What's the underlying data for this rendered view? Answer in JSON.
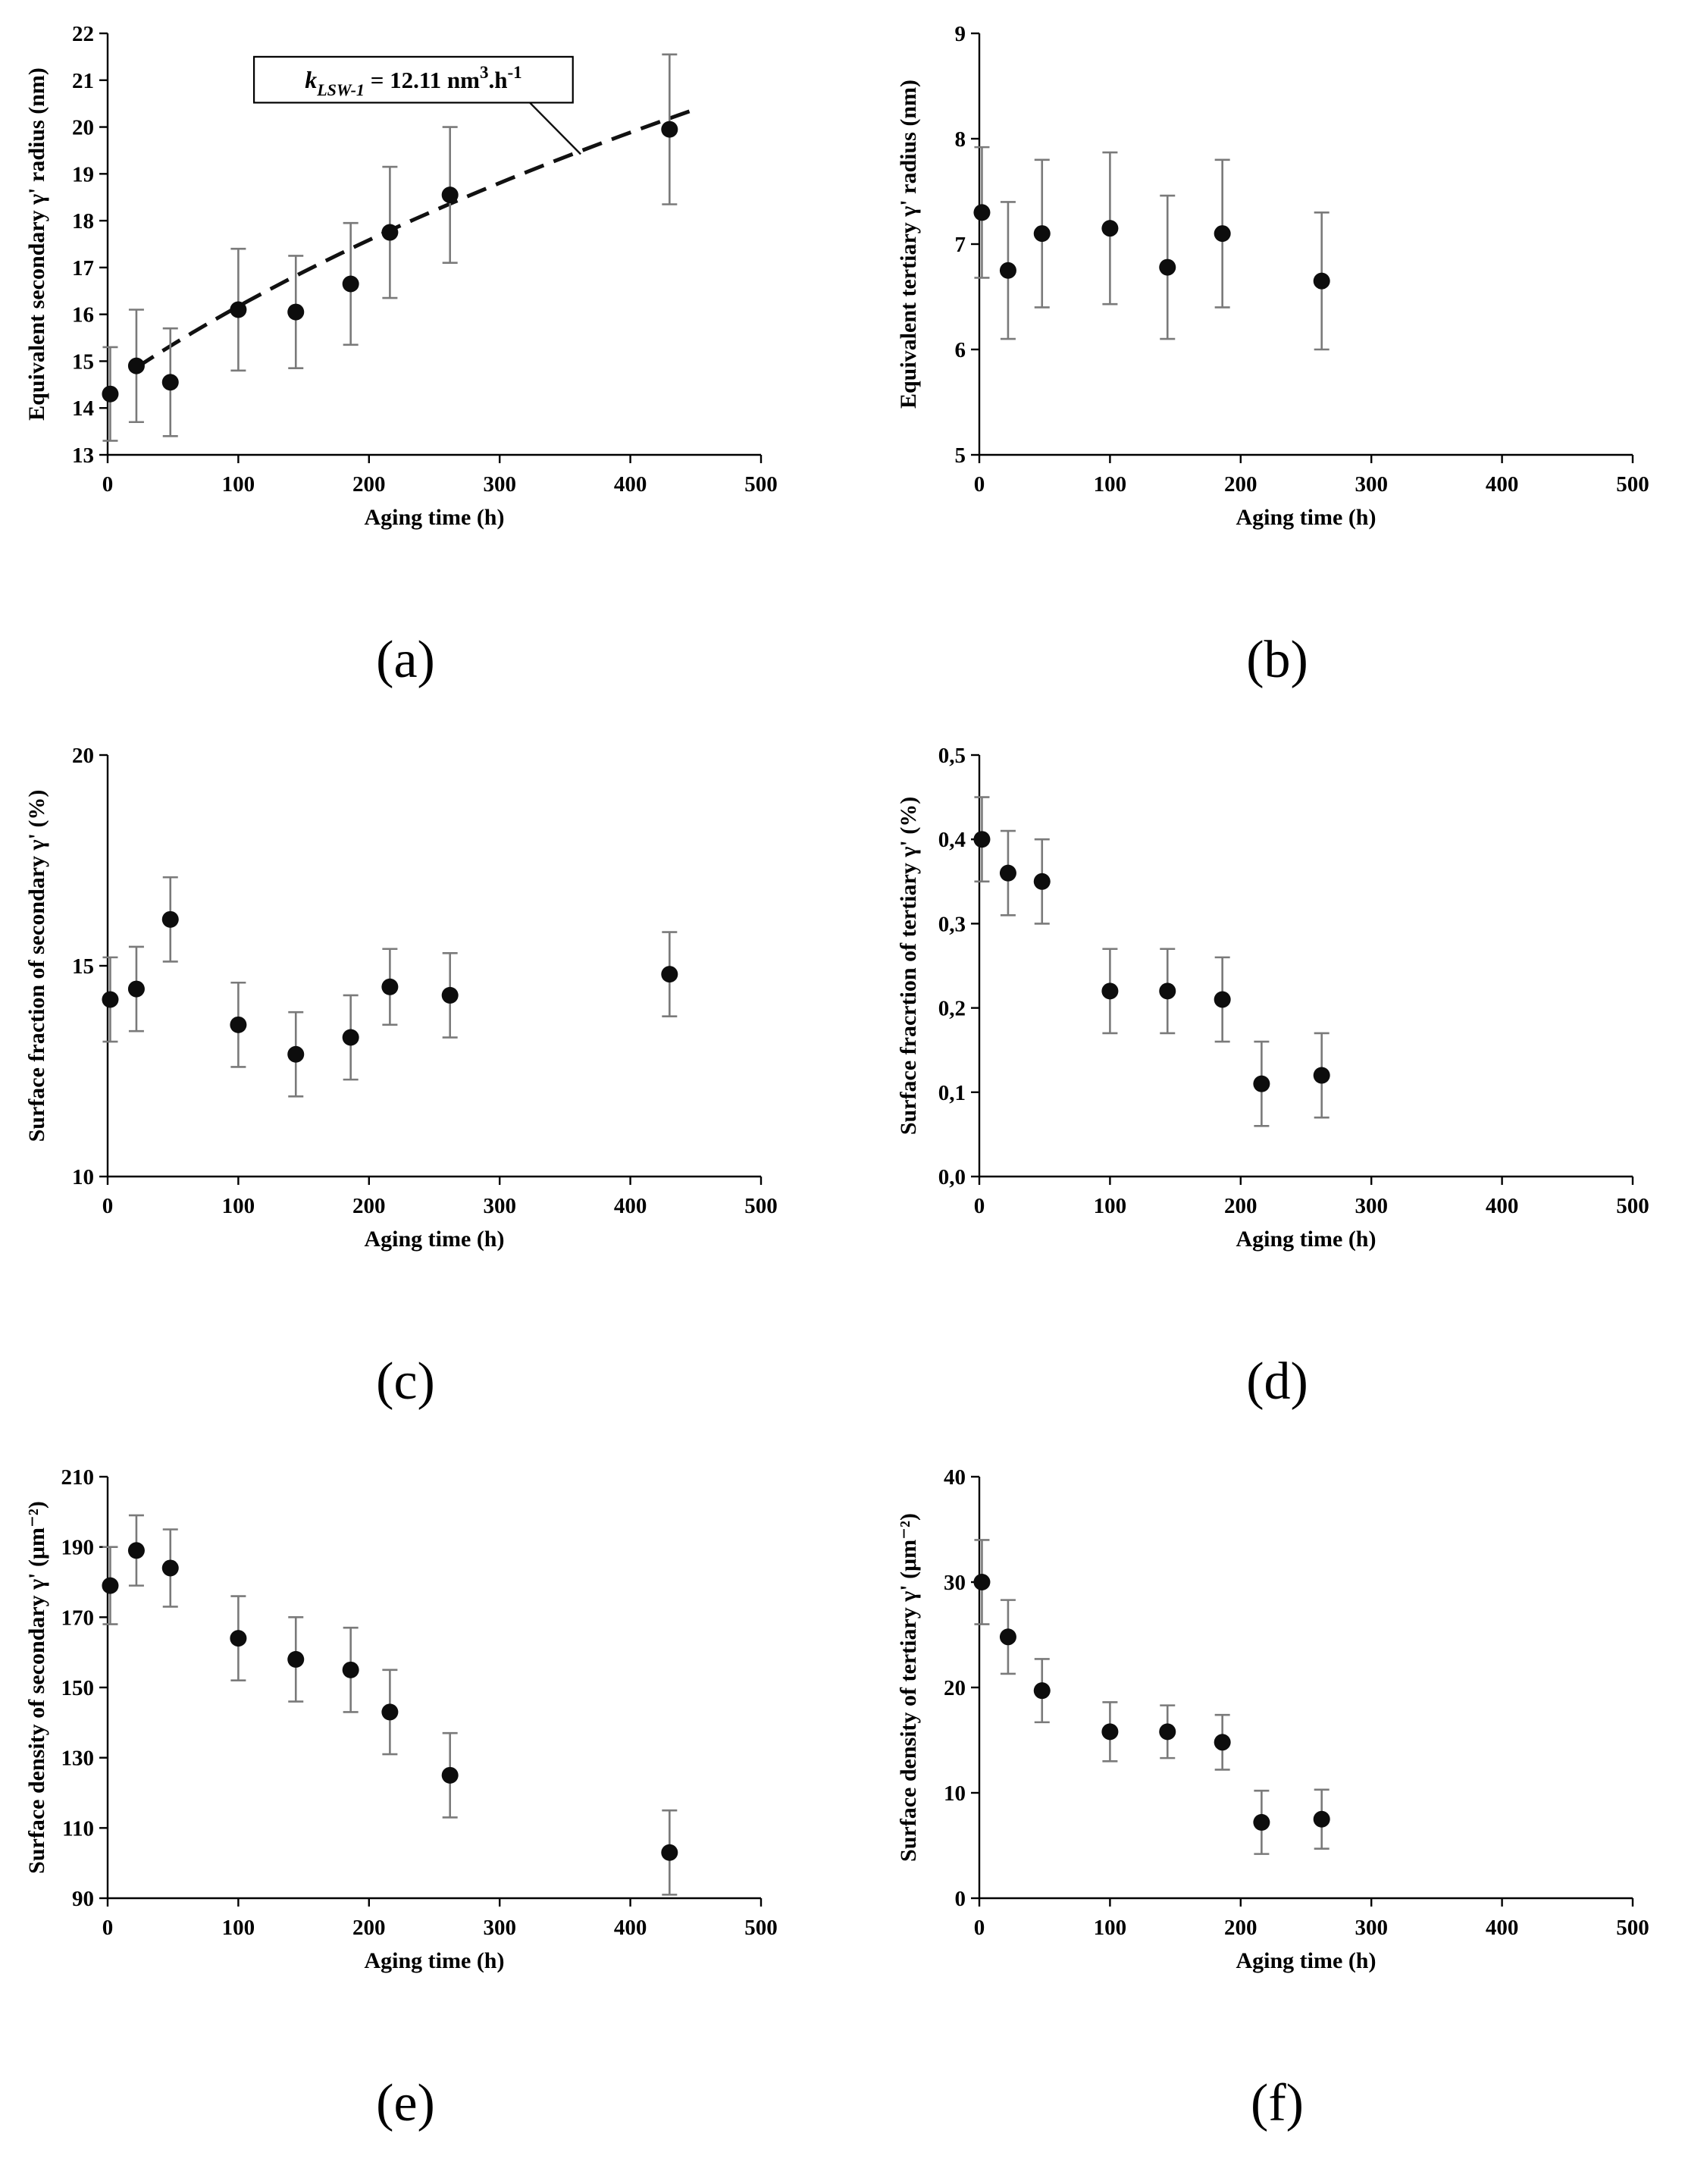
{
  "figure": {
    "background": "#ffffff"
  },
  "colors": {
    "marker": "#0d0d0d",
    "error_bar": "#7a7a7a",
    "axis": "#000000",
    "trend": "#111111",
    "annotation_border": "#000000",
    "annotation_fill": "#ffffff"
  },
  "chart_data": [
    {
      "panel_label": "(a)",
      "type": "scatter",
      "xlabel": "Aging time (h)",
      "ylabel": "Equivalent secondary γ' radius (nm)",
      "xlim": [
        0,
        500
      ],
      "ylim": [
        13,
        22
      ],
      "xticks_v": [
        0,
        100,
        200,
        300,
        400,
        500
      ],
      "xticks_l": [
        "0",
        "100",
        "200",
        "300",
        "400",
        "500"
      ],
      "yticks_v": [
        13,
        14,
        15,
        16,
        17,
        18,
        19,
        20,
        21,
        22
      ],
      "yticks_l": [
        "13",
        "14",
        "15",
        "16",
        "17",
        "18",
        "19",
        "20",
        "21",
        "22"
      ],
      "grid": false,
      "legend": null,
      "points": [
        {
          "x": 2,
          "y": 14.3,
          "e": 1.0
        },
        {
          "x": 22,
          "y": 14.9,
          "e": 1.2
        },
        {
          "x": 48,
          "y": 14.55,
          "e": 1.15
        },
        {
          "x": 100,
          "y": 16.1,
          "e": 1.3
        },
        {
          "x": 144,
          "y": 16.05,
          "e": 1.2
        },
        {
          "x": 186,
          "y": 16.65,
          "e": 1.3
        },
        {
          "x": 216,
          "y": 17.75,
          "e": 1.4
        },
        {
          "x": 262,
          "y": 18.55,
          "e": 1.45
        },
        {
          "x": 430,
          "y": 19.95,
          "e": 1.6
        }
      ],
      "trend": {
        "model": "lsw_cube_root",
        "r0": 14.45,
        "k": 12.11,
        "x_start": 22,
        "x_end": 450
      },
      "annotation": {
        "text_plain": "k_LSW-1 = 12.11 nm3.h-1",
        "box": {
          "x0": 112,
          "x1": 356,
          "y_top": 21.5,
          "y_bot": 20.52
        },
        "leader": {
          "x1": 322,
          "y1": 20.55,
          "x2": 362,
          "y2": 19.42
        },
        "pieces": [
          {
            "t": "k",
            "s": "bi"
          },
          {
            "t": "LSW-1",
            "s": "subi"
          },
          {
            "t": " = 12.11 nm",
            "s": "n"
          },
          {
            "t": "3",
            "s": "sup"
          },
          {
            "t": ".h",
            "s": "n"
          },
          {
            "t": "-1",
            "s": "sup"
          }
        ]
      }
    },
    {
      "panel_label": "(b)",
      "type": "scatter",
      "xlabel": "Aging time (h)",
      "ylabel": "Equivalent tertiary γ' radius (nm)",
      "xlim": [
        0,
        500
      ],
      "ylim": [
        5,
        9
      ],
      "xticks_v": [
        0,
        100,
        200,
        300,
        400,
        500
      ],
      "xticks_l": [
        "0",
        "100",
        "200",
        "300",
        "400",
        "500"
      ],
      "yticks_v": [
        5,
        6,
        7,
        8,
        9
      ],
      "yticks_l": [
        "5",
        "6",
        "7",
        "8",
        "9"
      ],
      "grid": false,
      "legend": null,
      "points": [
        {
          "x": 2,
          "y": 7.3,
          "e": 0.62
        },
        {
          "x": 22,
          "y": 6.75,
          "e": 0.65
        },
        {
          "x": 48,
          "y": 7.1,
          "e": 0.7
        },
        {
          "x": 100,
          "y": 7.15,
          "e": 0.72
        },
        {
          "x": 144,
          "y": 6.78,
          "e": 0.68
        },
        {
          "x": 186,
          "y": 7.1,
          "e": 0.7
        },
        {
          "x": 262,
          "y": 6.65,
          "e": 0.65
        }
      ],
      "trend": null,
      "annotation": null
    },
    {
      "panel_label": "(c)",
      "type": "scatter",
      "xlabel": "Aging time (h)",
      "ylabel": "Surface fraction  of secondary γ' (%)",
      "xlim": [
        0,
        500
      ],
      "ylim": [
        10,
        20
      ],
      "xticks_v": [
        0,
        100,
        200,
        300,
        400,
        500
      ],
      "xticks_l": [
        "0",
        "100",
        "200",
        "300",
        "400",
        "500"
      ],
      "yticks_v": [
        10,
        15,
        20
      ],
      "yticks_l": [
        "10",
        "15",
        "20"
      ],
      "grid": false,
      "legend": null,
      "points": [
        {
          "x": 2,
          "y": 14.2,
          "e": 1.0
        },
        {
          "x": 22,
          "y": 14.45,
          "e": 1.0
        },
        {
          "x": 48,
          "y": 16.1,
          "e": 1.0
        },
        {
          "x": 100,
          "y": 13.6,
          "e": 1.0
        },
        {
          "x": 144,
          "y": 12.9,
          "e": 1.0
        },
        {
          "x": 186,
          "y": 13.3,
          "e": 1.0
        },
        {
          "x": 216,
          "y": 14.5,
          "e": 0.9
        },
        {
          "x": 262,
          "y": 14.3,
          "e": 1.0
        },
        {
          "x": 430,
          "y": 14.8,
          "e": 1.0
        }
      ],
      "trend": null,
      "annotation": null
    },
    {
      "panel_label": "(d)",
      "type": "scatter",
      "xlabel": "Aging time (h)",
      "ylabel": "Surface fracrtion of tertiary γ' (%)",
      "xlim": [
        0,
        500
      ],
      "ylim": [
        0,
        0.5
      ],
      "xticks_v": [
        0,
        100,
        200,
        300,
        400,
        500
      ],
      "xticks_l": [
        "0",
        "100",
        "200",
        "300",
        "400",
        "500"
      ],
      "yticks_v": [
        0,
        0.1,
        0.2,
        0.3,
        0.4,
        0.5
      ],
      "yticks_l": [
        "0,0",
        "0,1",
        "0,2",
        "0,3",
        "0,4",
        "0,5"
      ],
      "grid": false,
      "legend": null,
      "points": [
        {
          "x": 2,
          "y": 0.4,
          "e": 0.05
        },
        {
          "x": 22,
          "y": 0.36,
          "e": 0.05
        },
        {
          "x": 48,
          "y": 0.35,
          "e": 0.05
        },
        {
          "x": 100,
          "y": 0.22,
          "e": 0.05
        },
        {
          "x": 144,
          "y": 0.22,
          "e": 0.05
        },
        {
          "x": 186,
          "y": 0.21,
          "e": 0.05
        },
        {
          "x": 216,
          "y": 0.11,
          "e": 0.05
        },
        {
          "x": 262,
          "y": 0.12,
          "e": 0.05
        }
      ],
      "trend": null,
      "annotation": null
    },
    {
      "panel_label": "(e)",
      "type": "scatter",
      "xlabel": "Aging time (h)",
      "ylabel": "Surface density of secondary γ' (μm⁻²)",
      "xlim": [
        0,
        500
      ],
      "ylim": [
        90,
        210
      ],
      "xticks_v": [
        0,
        100,
        200,
        300,
        400,
        500
      ],
      "xticks_l": [
        "0",
        "100",
        "200",
        "300",
        "400",
        "500"
      ],
      "yticks_v": [
        90,
        110,
        130,
        150,
        170,
        190,
        210
      ],
      "yticks_l": [
        "90",
        "110",
        "130",
        "150",
        "170",
        "190",
        "210"
      ],
      "grid": false,
      "legend": null,
      "points": [
        {
          "x": 2,
          "y": 179,
          "e": 11
        },
        {
          "x": 22,
          "y": 189,
          "e": 10
        },
        {
          "x": 48,
          "y": 184,
          "e": 11
        },
        {
          "x": 100,
          "y": 164,
          "e": 12
        },
        {
          "x": 144,
          "y": 158,
          "e": 12
        },
        {
          "x": 186,
          "y": 155,
          "e": 12
        },
        {
          "x": 216,
          "y": 143,
          "e": 12
        },
        {
          "x": 262,
          "y": 125,
          "e": 12
        },
        {
          "x": 430,
          "y": 103,
          "e": 12
        }
      ],
      "trend": null,
      "annotation": null
    },
    {
      "panel_label": "(f)",
      "type": "scatter",
      "xlabel": "Aging time (h)",
      "ylabel": "Surface density of tertiary γ' (μm⁻²)",
      "xlim": [
        0,
        500
      ],
      "ylim": [
        0,
        40
      ],
      "xticks_v": [
        0,
        100,
        200,
        300,
        400,
        500
      ],
      "xticks_l": [
        "0",
        "100",
        "200",
        "300",
        "400",
        "500"
      ],
      "yticks_v": [
        0,
        10,
        20,
        30,
        40
      ],
      "yticks_l": [
        "0",
        "10",
        "20",
        "30",
        "40"
      ],
      "grid": false,
      "legend": null,
      "points": [
        {
          "x": 2,
          "y": 30.0,
          "e": 4.0
        },
        {
          "x": 22,
          "y": 24.8,
          "e": 3.5
        },
        {
          "x": 48,
          "y": 19.7,
          "e": 3.0
        },
        {
          "x": 100,
          "y": 15.8,
          "e": 2.8
        },
        {
          "x": 144,
          "y": 15.8,
          "e": 2.5
        },
        {
          "x": 186,
          "y": 14.8,
          "e": 2.6
        },
        {
          "x": 216,
          "y": 7.2,
          "e": 3.0
        },
        {
          "x": 262,
          "y": 7.5,
          "e": 2.8
        }
      ],
      "trend": null,
      "annotation": null
    }
  ]
}
